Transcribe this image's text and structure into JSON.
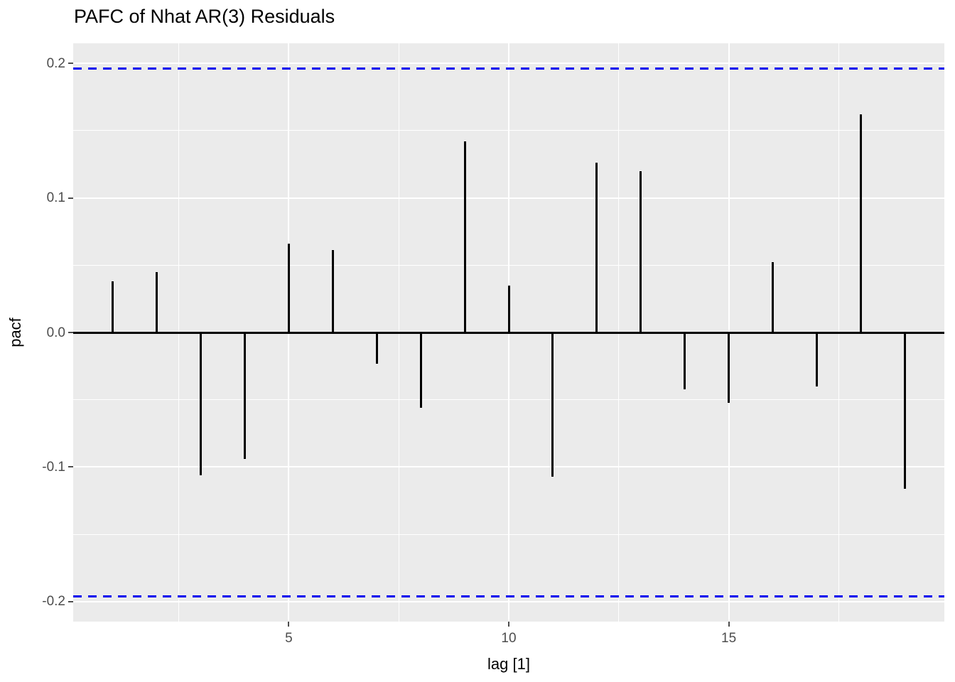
{
  "title": "PAFC of Nhat AR(3) Residuals",
  "chart_data": {
    "type": "bar",
    "subtype": "pacf-lollipop",
    "title": "PAFC of Nhat AR(3) Residuals",
    "xlabel": "lag [1]",
    "ylabel": "pacf",
    "x": [
      1,
      2,
      3,
      4,
      5,
      6,
      7,
      8,
      9,
      10,
      11,
      12,
      13,
      14,
      15,
      16,
      17,
      18,
      19
    ],
    "values": [
      0.038,
      0.045,
      -0.106,
      -0.094,
      0.066,
      0.061,
      -0.023,
      -0.056,
      0.142,
      0.035,
      -0.107,
      0.126,
      0.12,
      -0.042,
      -0.052,
      0.052,
      -0.04,
      0.162,
      -0.116
    ],
    "conf_bounds": {
      "upper": 0.196,
      "lower": -0.196
    },
    "xlim": [
      0.1,
      19.9
    ],
    "ylim": [
      -0.2148,
      0.2148
    ],
    "x_major_ticks": [
      5,
      10,
      15
    ],
    "x_tick_labels": [
      "5",
      "10",
      "15"
    ],
    "x_minor_gridlines": [
      2.5,
      7.5,
      12.5,
      17.5
    ],
    "y_major_ticks": [
      0.2,
      0.1,
      0.0,
      -0.1,
      -0.2
    ],
    "y_tick_labels": [
      "0.2",
      "0.1",
      "0.0",
      "-0.1",
      "-0.2"
    ],
    "y_minor_gridlines": [
      0.15,
      0.05,
      -0.05,
      -0.15
    ],
    "grid": true,
    "legend_position": "none",
    "colors": {
      "bar": "#000000",
      "ci_line": "#0000EE",
      "panel_bg": "#EBEBEB",
      "gridline": "#FFFFFF",
      "tick_label": "#4D4D4D",
      "axis_title": "#000000",
      "title": "#000000",
      "background": "#FFFFFF"
    }
  }
}
